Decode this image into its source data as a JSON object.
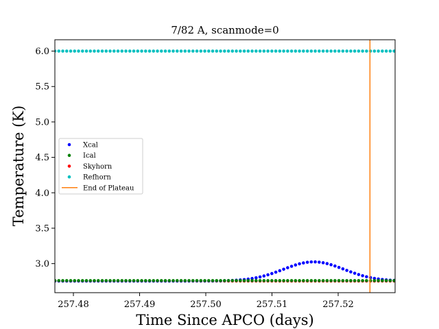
{
  "chart_data": {
    "type": "scatter",
    "title": "7/82 A, scanmode=0",
    "xlabel": "Time Since APCO (days)",
    "ylabel": "Temperature (K)",
    "xlim": [
      257.4772,
      257.5286
    ],
    "ylim": [
      2.59,
      6.16
    ],
    "xticks": [
      257.48,
      257.49,
      257.5,
      257.51,
      257.52
    ],
    "xtick_labels": [
      "257.48",
      "257.49",
      "257.50",
      "257.51",
      "257.52"
    ],
    "yticks": [
      3.0,
      3.5,
      4.0,
      4.5,
      5.0,
      5.5,
      6.0
    ],
    "ytick_labels": [
      "3.0",
      "3.5",
      "4.0",
      "4.5",
      "5.0",
      "5.5",
      "6.0"
    ],
    "x_start": 257.4772,
    "x_step": 0.000596,
    "n_points": 87,
    "series": [
      {
        "name": "Xcal",
        "color": "#0000ff",
        "baseline": 2.755,
        "bump": {
          "center": 257.5163,
          "peak": 3.025,
          "width": 0.0046
        }
      },
      {
        "name": "Ical",
        "color": "#008000",
        "constant": 2.76
      },
      {
        "name": "Skyhorn",
        "color": "#ff0000",
        "constant": 2.755
      },
      {
        "name": "Refhorn",
        "color": "#00bfbf",
        "constant": 6.0
      }
    ],
    "vline": {
      "name": "End of Plateau",
      "x": 257.5248,
      "color": "#ff7f0e"
    },
    "legend": {
      "placement": "center-left",
      "entries": [
        "Xcal",
        "Ical",
        "Skyhorn",
        "Refhorn",
        "End of Plateau"
      ]
    },
    "grid": false
  }
}
